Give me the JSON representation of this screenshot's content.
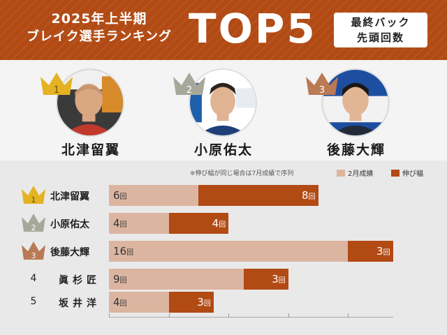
{
  "header": {
    "line1": "2025年上半期",
    "line2": "ブレイク選手ランキング",
    "big": "TOP5",
    "badge_line1": "最終バック",
    "badge_line2": "先頭回数"
  },
  "profiles": [
    {
      "rank": "1",
      "name": "北津留翼",
      "crown_color": "#e3b323"
    },
    {
      "rank": "2",
      "name": "小原佑太",
      "crown_color": "#a8a89a"
    },
    {
      "rank": "3",
      "name": "後藤大輝",
      "crown_color": "#b97a55"
    }
  ],
  "legend": {
    "note": "※伸び幅が同じ場合は7月成績で序列",
    "first": "2月成績",
    "second": "伸び幅",
    "first_color": "#dcb5a0",
    "second_color": "#b24a14"
  },
  "unit": "回",
  "chart_data": {
    "type": "bar",
    "orientation": "horizontal",
    "stacked": true,
    "categories": [
      "北津留翼",
      "小原佑太",
      "後藤大輝",
      "眞杉匠",
      "坂井洋"
    ],
    "ranks": [
      "1",
      "2",
      "3",
      "4",
      "5"
    ],
    "series": [
      {
        "name": "2月成績",
        "values": [
          6,
          4,
          16,
          9,
          4
        ]
      },
      {
        "name": "伸び幅",
        "values": [
          8,
          4,
          3,
          3,
          3
        ]
      }
    ],
    "xlim": [
      0,
      19
    ],
    "grid": false,
    "legend_position": "top-right"
  }
}
